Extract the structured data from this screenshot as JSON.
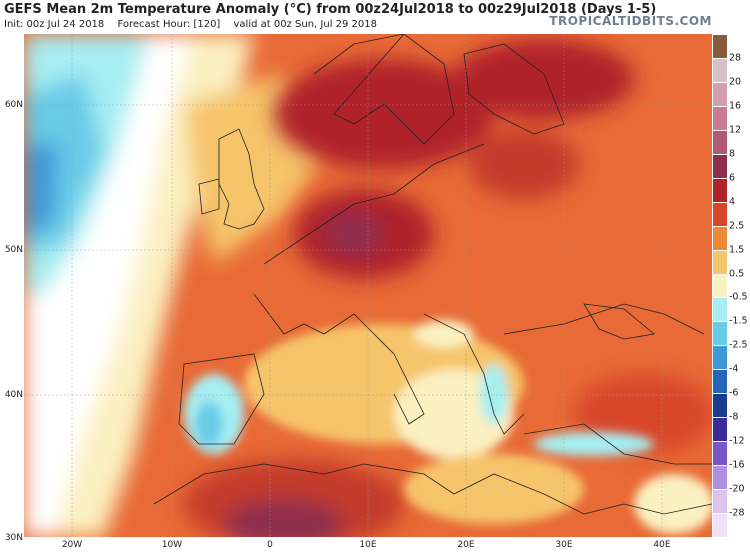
{
  "header": {
    "title": "GEFS Mean 2m Temperature Anomaly (°C) from 00z24Jul2018 to 00z29Jul2018 (Days 1-5)",
    "init": "Init: 00z Jul 24 2018",
    "forecast_hour": "Forecast Hour: [120]",
    "valid": "valid at 00z Sun, Jul 29 2018",
    "brand": "TROPICALTIDBITS.COM"
  },
  "map": {
    "lat_labels": [
      "60N",
      "50N",
      "40N",
      "30N"
    ],
    "lon_labels": [
      "20W",
      "10W",
      "0",
      "10E",
      "20E",
      "30E",
      "40E"
    ]
  },
  "legend": {
    "ticks": [
      "28",
      "20",
      "16",
      "12",
      "8",
      "6",
      "4",
      "2.5",
      "1.5",
      "0.5",
      "-0.5",
      "-1.5",
      "-2.5",
      "-4",
      "-6",
      "-8",
      "-12",
      "-16",
      "-20",
      "-28"
    ],
    "colors": [
      "#8a5a3c",
      "#d6c0c6",
      "#d39fae",
      "#c87b93",
      "#b05a76",
      "#8e2f4d",
      "#b0232a",
      "#d8462a",
      "#ec8a36",
      "#f6c46b",
      "#fbf0c0",
      "#a6eef2",
      "#68cbe8",
      "#3f99d8",
      "#2565b8",
      "#1a3d8f",
      "#3b2a9a",
      "#7a55c6",
      "#b08ee0",
      "#dcc4ef",
      "#f0dff7"
    ]
  }
}
